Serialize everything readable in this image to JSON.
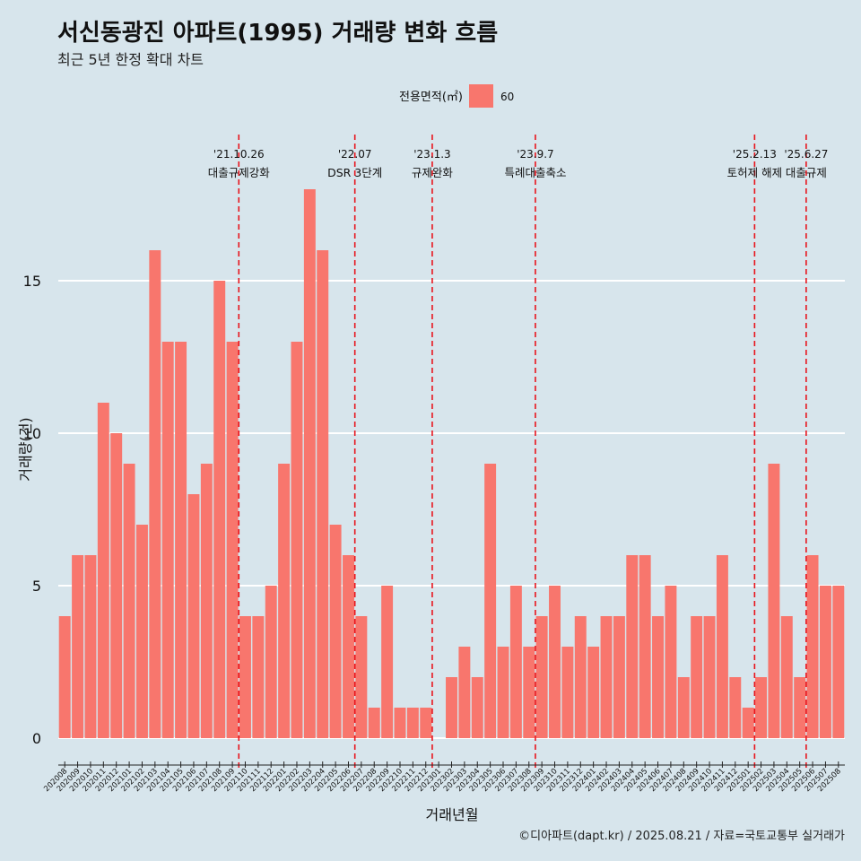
{
  "title": "서신동광진 아파트(1995) 거래량 변화 흐름",
  "subtitle": "최근 5년 한정 확대 차트",
  "caption": "©디아파트(dapt.kr) / 2025.08.21 / 자료=국토교통부 실거래가",
  "chart_data": {
    "type": "bar",
    "xlabel": "거래년월",
    "ylabel": "거래량(건)",
    "ylim": [
      0,
      18
    ],
    "yticks": [
      0,
      5,
      10,
      15
    ],
    "grid": true,
    "legend": {
      "title": "전용면적(㎡)",
      "position": "top",
      "entries": [
        {
          "label": "60",
          "color": "#f8766d"
        }
      ]
    },
    "categories": [
      "202008",
      "202009",
      "202010",
      "202011",
      "202012",
      "202101",
      "202102",
      "202103",
      "202104",
      "202105",
      "202106",
      "202107",
      "202108",
      "202109",
      "202110",
      "202111",
      "202112",
      "202201",
      "202202",
      "202203",
      "202204",
      "202205",
      "202206",
      "202207",
      "202208",
      "202209",
      "202210",
      "202211",
      "202212",
      "202301",
      "202302",
      "202303",
      "202304",
      "202305",
      "202306",
      "202307",
      "202308",
      "202309",
      "202310",
      "202311",
      "202312",
      "202401",
      "202402",
      "202403",
      "202404",
      "202405",
      "202406",
      "202407",
      "202408",
      "202409",
      "202410",
      "202411",
      "202412",
      "202501",
      "202502",
      "202503",
      "202504",
      "202505",
      "202506",
      "202507",
      "202508"
    ],
    "series": [
      {
        "name": "60",
        "color": "#f8766d",
        "values": [
          4,
          6,
          6,
          11,
          10,
          9,
          7,
          16,
          13,
          13,
          8,
          9,
          15,
          13,
          4,
          4,
          5,
          9,
          13,
          18,
          16,
          7,
          6,
          4,
          1,
          5,
          1,
          1,
          1,
          0,
          2,
          3,
          2,
          9,
          3,
          5,
          3,
          4,
          5,
          3,
          4,
          3,
          4,
          4,
          6,
          6,
          4,
          5,
          2,
          4,
          4,
          6,
          2,
          1,
          2,
          9,
          4,
          2,
          6,
          5,
          5
        ]
      }
    ],
    "annotations": [
      {
        "category": "202110",
        "date": "'21.10.26",
        "label": "대출규제강화"
      },
      {
        "category": "202207",
        "date": "'22.07",
        "label": "DSR 3단계"
      },
      {
        "category": "202301",
        "date": "'23.1.3",
        "label": "규제완화"
      },
      {
        "category": "202309",
        "date": "'23.9.7",
        "label": "특례대출축소"
      },
      {
        "category": "202502",
        "date": "'25.2.13",
        "label": "토허제 해제"
      },
      {
        "category": "202506",
        "date": "'25.6.27",
        "label": "대출규제"
      }
    ]
  }
}
